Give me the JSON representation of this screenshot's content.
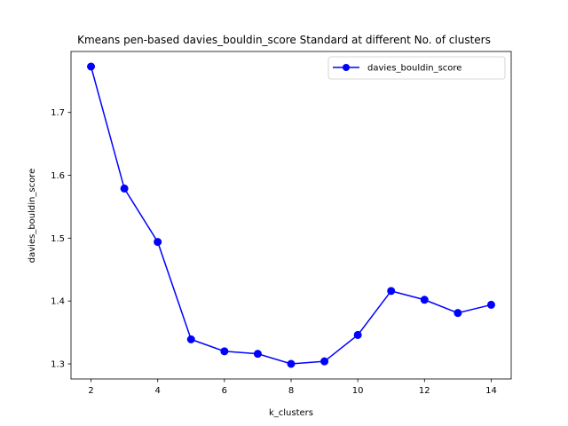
{
  "chart_data": {
    "type": "line",
    "title": "Kmeans pen-based davies_bouldin_score Standard at different No. of clusters",
    "xlabel": "k_clusters",
    "ylabel": "davies_bouldin_score",
    "x": [
      2,
      3,
      4,
      5,
      6,
      7,
      8,
      9,
      10,
      11,
      12,
      13,
      14
    ],
    "series": [
      {
        "name": "davies_bouldin_score",
        "color": "#0000ff",
        "marker": "circle",
        "values": [
          1.773,
          1.579,
          1.494,
          1.339,
          1.32,
          1.316,
          1.3,
          1.304,
          1.346,
          1.416,
          1.402,
          1.381,
          1.394
        ]
      }
    ],
    "xlim": [
      1.4,
      14.6
    ],
    "ylim": [
      1.276,
      1.797
    ],
    "xticks": [
      2,
      4,
      6,
      8,
      10,
      12,
      14
    ],
    "yticks": [
      1.3,
      1.4,
      1.5,
      1.6,
      1.7
    ],
    "xtick_labels": [
      "2",
      "4",
      "6",
      "8",
      "10",
      "12",
      "14"
    ],
    "ytick_labels": [
      "1.3",
      "1.4",
      "1.5",
      "1.6",
      "1.7"
    ],
    "grid": false,
    "legend_position": "top-right"
  }
}
